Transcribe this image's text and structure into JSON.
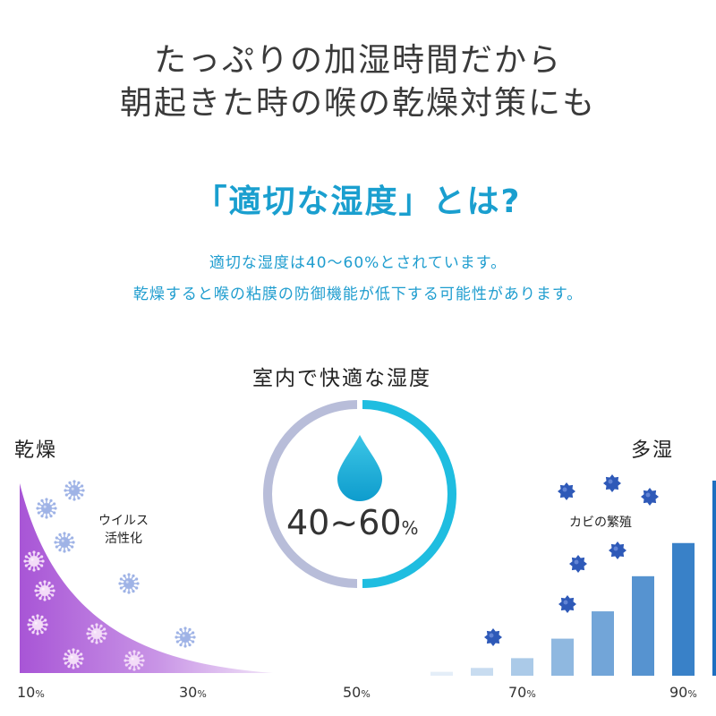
{
  "headline": {
    "line1": "たっぷりの加湿時間だから",
    "line2": "朝起きた時の喉の乾燥対策にも"
  },
  "question": "「適切な湿度」とは?",
  "description": {
    "line1": "適切な湿度は40〜60%とされています。",
    "line2": "乾燥すると喉の粘膜の防御機能が低下する可能性があります。"
  },
  "gauge": {
    "title": "室内で快適な湿度",
    "value": "40~60",
    "unit": "%"
  },
  "dry": {
    "label": "乾燥",
    "note_line1": "ウイルス",
    "note_line2": "活性化"
  },
  "humid": {
    "label": "多湿",
    "note": "カビの繁殖"
  },
  "axis": [
    {
      "value": "10",
      "unit": "%"
    },
    {
      "value": "30",
      "unit": "%"
    },
    {
      "value": "50",
      "unit": "%"
    },
    {
      "value": "70",
      "unit": "%"
    },
    {
      "value": "90",
      "unit": "%"
    }
  ],
  "mold_bars": [
    0.02,
    0.04,
    0.09,
    0.19,
    0.33,
    0.51,
    0.68,
    1.0
  ],
  "colors": {
    "accent": "#1a9fcf",
    "dry_gradient": "#a855d6",
    "gauge_gray": "#b8bdd9",
    "gauge_cyan": "#1fbde0",
    "bar_dark": "#1d6fc0"
  }
}
